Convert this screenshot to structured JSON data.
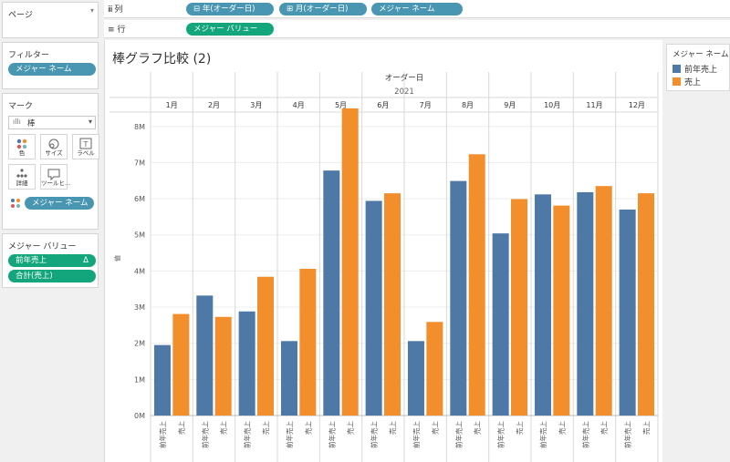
{
  "pages_card": {
    "title": "ページ"
  },
  "shelves": {
    "columns_label": "列",
    "columns_pills": [
      "⊟ 年(オーダー日)",
      "⊞ 月(オーダー日)",
      "メジャー ネーム"
    ],
    "rows_label": "行",
    "rows_pills": [
      "メジャー バリュー"
    ]
  },
  "filters_card": {
    "title": "フィルター",
    "pills": [
      "メジャー ネーム"
    ]
  },
  "marks_card": {
    "title": "マーク",
    "mark_type": "棒",
    "buttons": [
      {
        "label": "色",
        "icon": "color-dots-icon"
      },
      {
        "label": "サイズ",
        "icon": "size-icon"
      },
      {
        "label": "ラベル",
        "icon": "label-icon"
      },
      {
        "label": "詳細",
        "icon": "detail-icon"
      },
      {
        "label": "ツールヒ...",
        "icon": "tooltip-icon"
      }
    ],
    "color_pill": "メジャー ネーム"
  },
  "measure_values_card": {
    "title": "メジャー バリュー",
    "pills": [
      {
        "text": "前年売上",
        "badge": "Δ"
      },
      {
        "text": "合計(売上)",
        "badge": ""
      }
    ]
  },
  "legend": {
    "title": "メジャー ネーム",
    "items": [
      {
        "label": "前年売上",
        "color": "#4e79a7"
      },
      {
        "label": "売上",
        "color": "#f28e2b"
      }
    ]
  },
  "sheet_title": "棒グラフ比較 (2)",
  "chart_data": {
    "type": "bar",
    "header_top": "オーダー日",
    "header_year": "2021",
    "ylabel": "値",
    "ylim": [
      0,
      8700000
    ],
    "yticks": [
      {
        "value": 0,
        "label": "0M"
      },
      {
        "value": 1000000,
        "label": "1M"
      },
      {
        "value": 2000000,
        "label": "2M"
      },
      {
        "value": 3000000,
        "label": "3M"
      },
      {
        "value": 4000000,
        "label": "4M"
      },
      {
        "value": 5000000,
        "label": "5M"
      },
      {
        "value": 6000000,
        "label": "6M"
      },
      {
        "value": 7000000,
        "label": "7M"
      },
      {
        "value": 8000000,
        "label": "8M"
      }
    ],
    "categories": [
      "1月",
      "2月",
      "3月",
      "4月",
      "5月",
      "6月",
      "7月",
      "8月",
      "9月",
      "10月",
      "11月",
      "12月"
    ],
    "series": [
      {
        "name": "前年売上",
        "color": "#4e79a7",
        "values": [
          1950000,
          3320000,
          2880000,
          2060000,
          6780000,
          5940000,
          2060000,
          6490000,
          5040000,
          6120000,
          6180000,
          5700000
        ]
      },
      {
        "name": "売上",
        "color": "#f28e2b",
        "values": [
          2810000,
          2730000,
          3840000,
          4060000,
          8500000,
          6150000,
          2590000,
          7230000,
          5990000,
          5810000,
          6350000,
          6150000
        ]
      }
    ]
  }
}
